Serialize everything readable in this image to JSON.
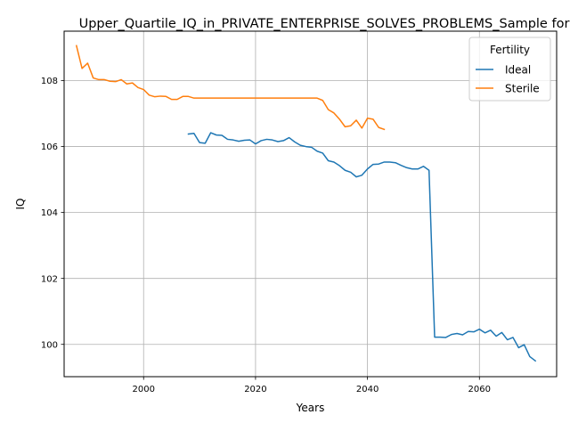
{
  "chart_data": {
    "type": "line",
    "title": "Upper_Quartile_IQ_in_PRIVATE_ENTERPRISE_SOLVES_PROBLEMS_Sample for",
    "xlabel": "Years",
    "ylabel": "IQ",
    "xlim": [
      1985.8,
      2073.8
    ],
    "ylim": [
      99.02,
      109.5
    ],
    "xticks": [
      2000,
      2020,
      2040,
      2060
    ],
    "yticks": [
      100,
      102,
      104,
      106,
      108
    ],
    "grid": true,
    "legend": {
      "title": "Fertility",
      "placement": "top-right"
    },
    "series": [
      {
        "name": "Ideal",
        "color": "#1f77b4",
        "x": [
          2008,
          2009,
          2010,
          2011,
          2012,
          2013,
          2014,
          2015,
          2016,
          2017,
          2018,
          2019,
          2020,
          2021,
          2022,
          2023,
          2024,
          2025,
          2026,
          2027,
          2028,
          2029,
          2030,
          2031,
          2032,
          2033,
          2034,
          2035,
          2036,
          2037,
          2038,
          2039,
          2040,
          2041,
          2042,
          2043,
          2044,
          2045,
          2046,
          2047,
          2048,
          2049,
          2050,
          2051,
          2052,
          2053,
          2054,
          2055,
          2056,
          2057,
          2058,
          2059,
          2060,
          2061,
          2062,
          2063,
          2064,
          2065,
          2066,
          2067,
          2068,
          2069,
          2070
        ],
        "y": [
          106.38,
          106.4,
          106.12,
          106.1,
          106.42,
          106.35,
          106.34,
          106.22,
          106.2,
          106.16,
          106.19,
          106.2,
          106.08,
          106.18,
          106.22,
          106.2,
          106.15,
          106.18,
          106.27,
          106.14,
          106.04,
          106.0,
          105.98,
          105.86,
          105.8,
          105.57,
          105.53,
          105.42,
          105.28,
          105.22,
          105.08,
          105.13,
          105.32,
          105.46,
          105.47,
          105.53,
          105.53,
          105.51,
          105.43,
          105.36,
          105.32,
          105.32,
          105.4,
          105.28,
          100.22,
          100.22,
          100.21,
          100.3,
          100.33,
          100.29,
          100.39,
          100.38,
          100.46,
          100.35,
          100.43,
          100.25,
          100.36,
          100.14,
          100.21,
          99.9,
          99.99,
          99.63,
          99.5
        ]
      },
      {
        "name": "Sterile",
        "color": "#ff7f0e",
        "x": [
          1988,
          1989,
          1990,
          1991,
          1992,
          1993,
          1994,
          1995,
          1996,
          1997,
          1998,
          1999,
          2000,
          2001,
          2002,
          2003,
          2004,
          2005,
          2006,
          2007,
          2008,
          2009,
          2010,
          2011,
          2012,
          2013,
          2014,
          2015,
          2016,
          2017,
          2018,
          2019,
          2020,
          2021,
          2022,
          2023,
          2024,
          2025,
          2026,
          2027,
          2028,
          2029,
          2030,
          2031,
          2032,
          2033,
          2034,
          2035,
          2036,
          2037,
          2038,
          2039,
          2040,
          2041,
          2042,
          2043
        ],
        "y": [
          109.06,
          108.37,
          108.53,
          108.08,
          108.03,
          108.03,
          107.98,
          107.97,
          108.03,
          107.9,
          107.93,
          107.79,
          107.73,
          107.56,
          107.51,
          107.53,
          107.52,
          107.43,
          107.43,
          107.52,
          107.52,
          107.47,
          107.47,
          107.47,
          107.47,
          107.47,
          107.47,
          107.47,
          107.47,
          107.47,
          107.47,
          107.47,
          107.47,
          107.47,
          107.47,
          107.47,
          107.47,
          107.47,
          107.47,
          107.47,
          107.47,
          107.47,
          107.47,
          107.47,
          107.4,
          107.12,
          107.02,
          106.83,
          106.6,
          106.63,
          106.8,
          106.56,
          106.86,
          106.83,
          106.58,
          106.52
        ]
      }
    ]
  }
}
